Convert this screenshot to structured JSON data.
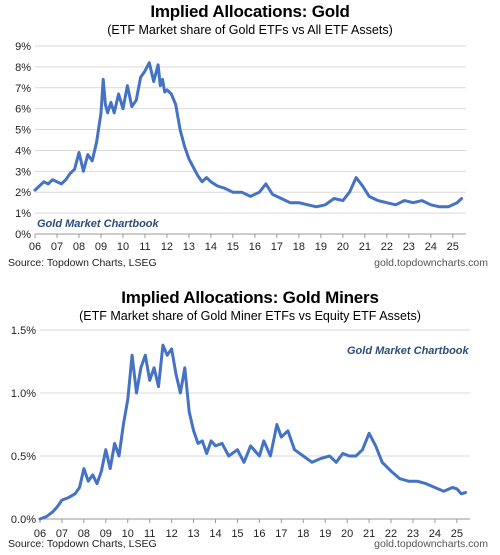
{
  "chart_data": [
    {
      "type": "line",
      "title": "Implied Allocations: Gold",
      "subtitle": "(ETF Market share of Gold ETFs vs All ETF Assets)",
      "source": "Source: Topdown Charts, LSEG",
      "website": "gold.topdowncharts.com",
      "watermark": "Gold Market Chartbook",
      "color": "#4472c4",
      "ylim": [
        0,
        9
      ],
      "yticks": [
        0,
        1,
        2,
        3,
        4,
        5,
        6,
        7,
        8,
        9
      ],
      "ytick_labels": [
        "0%",
        "1%",
        "2%",
        "3%",
        "4%",
        "5%",
        "6%",
        "7%",
        "8%",
        "9%"
      ],
      "xlim": [
        2006,
        2025.6
      ],
      "xticks": [
        2006,
        2007,
        2008,
        2009,
        2010,
        2011,
        2012,
        2013,
        2014,
        2015,
        2016,
        2017,
        2018,
        2019,
        2020,
        2021,
        2022,
        2023,
        2024,
        2025
      ],
      "xtick_labels": [
        "06",
        "07",
        "08",
        "09",
        "10",
        "11",
        "12",
        "13",
        "14",
        "15",
        "16",
        "17",
        "18",
        "19",
        "20",
        "21",
        "22",
        "23",
        "24",
        "25"
      ],
      "grid": true,
      "series": [
        {
          "x": [
            2006.0,
            2006.2,
            2006.4,
            2006.6,
            2006.8,
            2007.0,
            2007.2,
            2007.4,
            2007.6,
            2007.8,
            2008.0,
            2008.2,
            2008.4,
            2008.6,
            2008.8,
            2009.0,
            2009.1,
            2009.2,
            2009.3,
            2009.45,
            2009.6,
            2009.8,
            2010.0,
            2010.2,
            2010.4,
            2010.6,
            2010.8,
            2011.0,
            2011.2,
            2011.4,
            2011.6,
            2011.7,
            2011.8,
            2011.9,
            2012.0,
            2012.2,
            2012.4,
            2012.6,
            2012.8,
            2013.0,
            2013.2,
            2013.4,
            2013.6,
            2013.8,
            2014.0,
            2014.3,
            2014.6,
            2015.0,
            2015.4,
            2015.8,
            2016.2,
            2016.5,
            2016.8,
            2017.2,
            2017.6,
            2018.0,
            2018.4,
            2018.8,
            2019.2,
            2019.6,
            2020.0,
            2020.3,
            2020.6,
            2020.9,
            2021.2,
            2021.6,
            2022.0,
            2022.4,
            2022.8,
            2023.2,
            2023.6,
            2024.0,
            2024.4,
            2024.8,
            2025.0,
            2025.2,
            2025.4
          ],
          "y": [
            2.1,
            2.3,
            2.5,
            2.4,
            2.6,
            2.5,
            2.4,
            2.6,
            2.9,
            3.1,
            3.9,
            3.0,
            3.8,
            3.5,
            4.4,
            5.8,
            7.4,
            6.2,
            5.8,
            6.3,
            5.8,
            6.7,
            6.0,
            7.1,
            6.1,
            6.4,
            7.5,
            7.8,
            8.2,
            7.3,
            8.1,
            7.1,
            7.4,
            6.8,
            6.9,
            6.7,
            6.2,
            5.0,
            4.2,
            3.6,
            3.2,
            2.8,
            2.5,
            2.7,
            2.5,
            2.3,
            2.2,
            2.0,
            2.0,
            1.8,
            2.0,
            2.4,
            1.9,
            1.7,
            1.5,
            1.5,
            1.4,
            1.3,
            1.4,
            1.7,
            1.6,
            2.0,
            2.7,
            2.3,
            1.8,
            1.6,
            1.5,
            1.4,
            1.6,
            1.5,
            1.6,
            1.4,
            1.3,
            1.3,
            1.4,
            1.5,
            1.7
          ]
        }
      ]
    },
    {
      "type": "line",
      "title": "Implied Allocations: Gold Miners",
      "subtitle": "(ETF Market share of Gold Miner ETFs vs Equity ETF Assets)",
      "source": "Source: Topdown Charts, LSEG",
      "website": "gold.topdowncharts.com",
      "watermark": "Gold Market Chartbook",
      "color": "#4472c4",
      "ylim": [
        0,
        1.5
      ],
      "yticks": [
        0,
        0.5,
        1.0,
        1.5
      ],
      "ytick_labels": [
        "0.0%",
        "0.5%",
        "1.0%",
        "1.5%"
      ],
      "xlim": [
        2006,
        2025.6
      ],
      "xticks": [
        2006,
        2007,
        2008,
        2009,
        2010,
        2011,
        2012,
        2013,
        2014,
        2015,
        2016,
        2017,
        2018,
        2019,
        2020,
        2021,
        2022,
        2023,
        2024,
        2025
      ],
      "xtick_labels": [
        "06",
        "07",
        "08",
        "09",
        "10",
        "11",
        "12",
        "13",
        "14",
        "15",
        "16",
        "17",
        "18",
        "19",
        "20",
        "21",
        "22",
        "23",
        "24",
        "25"
      ],
      "grid": true,
      "series": [
        {
          "x": [
            2006.0,
            2006.3,
            2006.6,
            2006.8,
            2007.0,
            2007.3,
            2007.6,
            2007.8,
            2008.0,
            2008.2,
            2008.4,
            2008.6,
            2008.8,
            2009.0,
            2009.2,
            2009.4,
            2009.6,
            2009.8,
            2010.0,
            2010.2,
            2010.4,
            2010.6,
            2010.8,
            2011.0,
            2011.2,
            2011.4,
            2011.6,
            2011.8,
            2012.0,
            2012.2,
            2012.4,
            2012.6,
            2012.8,
            2013.0,
            2013.2,
            2013.4,
            2013.6,
            2013.8,
            2014.0,
            2014.3,
            2014.6,
            2015.0,
            2015.3,
            2015.6,
            2016.0,
            2016.2,
            2016.5,
            2016.8,
            2017.0,
            2017.3,
            2017.6,
            2018.0,
            2018.4,
            2018.8,
            2019.2,
            2019.5,
            2019.8,
            2020.1,
            2020.4,
            2020.7,
            2021.0,
            2021.3,
            2021.6,
            2022.0,
            2022.4,
            2022.8,
            2023.2,
            2023.6,
            2024.0,
            2024.4,
            2024.8,
            2025.0,
            2025.2,
            2025.4
          ],
          "y": [
            0.0,
            0.02,
            0.06,
            0.1,
            0.15,
            0.17,
            0.2,
            0.25,
            0.4,
            0.3,
            0.35,
            0.28,
            0.38,
            0.55,
            0.4,
            0.6,
            0.5,
            0.75,
            0.95,
            1.3,
            1.0,
            1.2,
            1.3,
            1.1,
            1.2,
            1.05,
            1.38,
            1.3,
            1.35,
            1.15,
            1.0,
            1.2,
            0.85,
            0.7,
            0.6,
            0.62,
            0.52,
            0.62,
            0.58,
            0.6,
            0.5,
            0.55,
            0.45,
            0.58,
            0.5,
            0.62,
            0.5,
            0.75,
            0.65,
            0.7,
            0.55,
            0.5,
            0.45,
            0.48,
            0.5,
            0.45,
            0.52,
            0.5,
            0.5,
            0.55,
            0.68,
            0.58,
            0.45,
            0.38,
            0.32,
            0.3,
            0.3,
            0.28,
            0.25,
            0.22,
            0.25,
            0.24,
            0.2,
            0.21
          ]
        }
      ]
    }
  ]
}
